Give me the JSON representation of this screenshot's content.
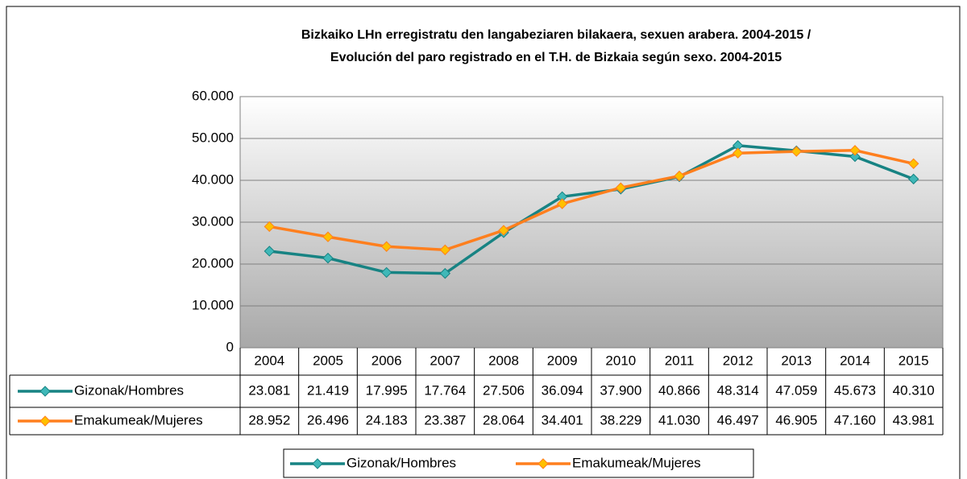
{
  "chart_data": {
    "type": "line",
    "title": "Bizkaiko LHn erregistratu den langabeziaren bilakaera, sexuen arabera. 2004-2015 /",
    "subtitle": "Evolución del paro registrado en el T.H. de Bizkaia según sexo. 2004-2015",
    "categories": [
      "2004",
      "2005",
      "2006",
      "2007",
      "2008",
      "2009",
      "2010",
      "2011",
      "2012",
      "2013",
      "2014",
      "2015"
    ],
    "series": [
      {
        "name": "Gizonak/Hombres",
        "color": "#178383",
        "marker_color": "#3fb8b8",
        "values": [
          23081,
          21419,
          17995,
          17764,
          27506,
          36094,
          37900,
          40866,
          48314,
          47059,
          45673,
          40310
        ],
        "value_labels": [
          "23.081",
          "21.419",
          "17.995",
          "17.764",
          "27.506",
          "36.094",
          "37.900",
          "40.866",
          "48.314",
          "47.059",
          "45.673",
          "40.310"
        ]
      },
      {
        "name": "Emakumeak/Mujeres",
        "color": "#ff7f1e",
        "marker_color": "#ffc000",
        "values": [
          28952,
          26496,
          24183,
          23387,
          28064,
          34401,
          38229,
          41030,
          46497,
          46905,
          47160,
          43981
        ],
        "value_labels": [
          "28.952",
          "26.496",
          "24.183",
          "23.387",
          "28.064",
          "34.401",
          "38.229",
          "41.030",
          "46.497",
          "46.905",
          "47.160",
          "43.981"
        ]
      }
    ],
    "ylim": [
      0,
      60000
    ],
    "yticks": [
      0,
      {
        "value": 10000,
        "label": "10.000"
      },
      {
        "value": 20000,
        "label": "20.000"
      },
      {
        "value": 30000,
        "label": "30.000"
      },
      {
        "value": 40000,
        "label": "40.000"
      },
      {
        "value": 50000,
        "label": "50.000"
      },
      {
        "value": 60000,
        "label": "60.000"
      }
    ],
    "grid": true
  }
}
